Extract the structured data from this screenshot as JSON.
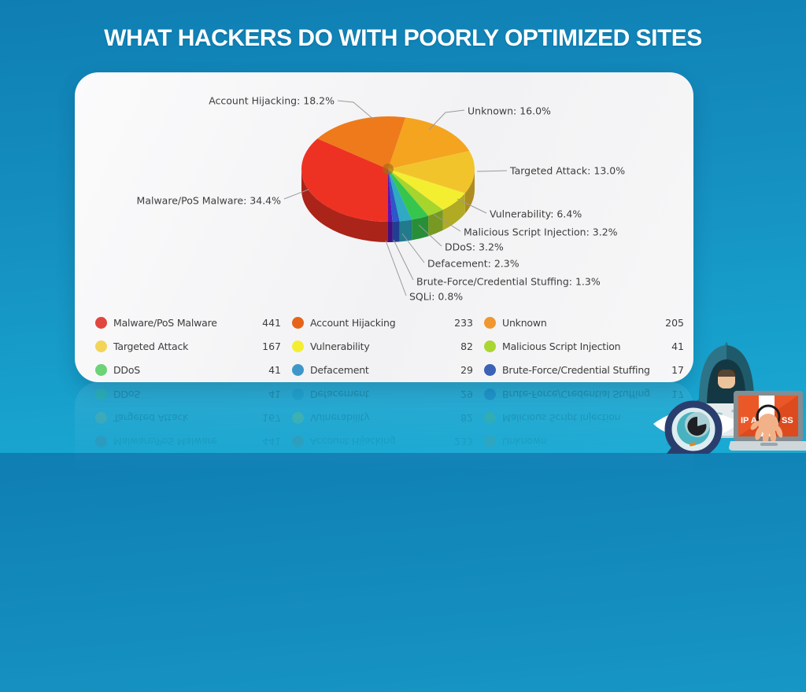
{
  "page": {
    "title": "WHAT HACKERS DO WITH POORLY OPTIMIZED SITES"
  },
  "colors": {
    "background_top": "#0f7eb3",
    "background_bottom": "#19abd4",
    "card": "#f6f6f7",
    "title_text": "#ffffff",
    "label_text": "#3d3d3d",
    "leader_line": "#9a9a9a"
  },
  "chart_data": {
    "type": "pie",
    "title": "WHAT HACKERS DO WITH POORLY OPTIMIZED SITES",
    "legend_position": "bottom",
    "segments": [
      {
        "label": "Malware/PoS Malware",
        "pct": 34.4,
        "count": 441,
        "callout": "Malware/PoS Malware: 34.4%",
        "color": "#ed3223"
      },
      {
        "label": "Account Hijacking",
        "pct": 18.2,
        "count": 233,
        "callout": "Account Hijacking: 18.2%",
        "color": "#ee7a1b"
      },
      {
        "label": "Unknown",
        "pct": 16.0,
        "count": 205,
        "callout": "Unknown: 16.0%",
        "color": "#f4a41f"
      },
      {
        "label": "Targeted Attack",
        "pct": 13.0,
        "count": 167,
        "callout": "Targeted Attack: 13.0%",
        "color": "#f2c42c"
      },
      {
        "label": "Vulnerability",
        "pct": 6.4,
        "count": 82,
        "callout": "Vulnerability: 6.4%",
        "color": "#f4ee31"
      },
      {
        "label": "Malicious Script Injection",
        "pct": 3.2,
        "count": 41,
        "callout": "Malicious Script Injection: 3.2%",
        "color": "#a6d52e"
      },
      {
        "label": "DDoS",
        "pct": 3.2,
        "count": 41,
        "callout": "DDoS: 3.2%",
        "color": "#36c64e"
      },
      {
        "label": "Defacement",
        "pct": 2.3,
        "count": 29,
        "callout": "Defacement: 2.3%",
        "color": "#2fa9c4"
      },
      {
        "label": "Brute-Force/Credential Stuffing",
        "pct": 1.3,
        "count": 17,
        "callout": "Brute-Force/Credential Stuffing: 1.3%",
        "color": "#2c57c8"
      },
      {
        "label": "SQLi",
        "pct": 0.8,
        "callout": "SQLi: 0.8%",
        "color": "#5d13b2"
      }
    ]
  },
  "legend": {
    "items": [
      {
        "label": "Malware/PoS Malware",
        "value": "441",
        "color": "#e0473f"
      },
      {
        "label": "Account Hijacking",
        "value": "233",
        "color": "#e56419"
      },
      {
        "label": "Unknown",
        "value": "205",
        "color": "#f0982e"
      },
      {
        "label": "Targeted Attack",
        "value": "167",
        "color": "#f2d45a"
      },
      {
        "label": "Vulnerability",
        "value": "82",
        "color": "#f4ee33"
      },
      {
        "label": "Malicious Script Injection",
        "value": "41",
        "color": "#aad632"
      },
      {
        "label": "DDoS",
        "value": "41",
        "color": "#6cd376"
      },
      {
        "label": "Defacement",
        "value": "29",
        "color": "#3f97c9"
      },
      {
        "label": "Brute-Force/Credential Stuffing",
        "value": "17",
        "color": "#3b62b5"
      }
    ]
  },
  "illustration": {
    "screen_text_left": "IP A",
    "screen_text_right": "SS"
  }
}
